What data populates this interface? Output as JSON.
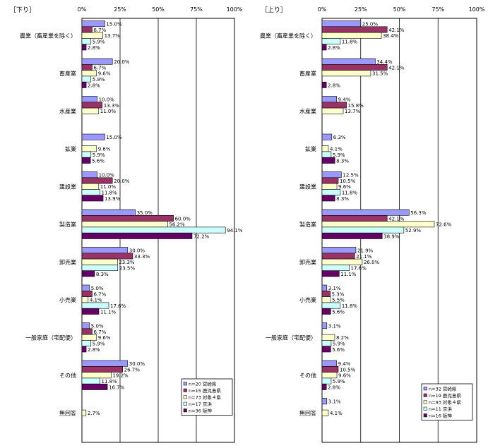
{
  "chart_data": [
    {
      "type": "bar",
      "orientation": "horizontal",
      "title": "［下り］",
      "xlim": [
        0,
        100
      ],
      "x_ticks": [
        "0%",
        "25%",
        "50%",
        "75%",
        "100%"
      ],
      "categories": [
        "農業（畜産業を除く）",
        "畜産業",
        "水産業",
        "鉱業",
        "建設業",
        "製造業",
        "卸売業",
        "小売業",
        "一般家庭（宅配便）",
        "その他",
        "無回答"
      ],
      "series": [
        {
          "name": "n=20 宮崎県",
          "color": "#9999ff",
          "values": [
            15.0,
            20.0,
            10.0,
            15.0,
            10.0,
            35.0,
            30.0,
            5.0,
            5.0,
            30.0,
            null
          ]
        },
        {
          "name": "n=15 鹿児島県",
          "color": "#993366",
          "values": [
            6.7,
            6.7,
            13.3,
            null,
            20.0,
            60.0,
            33.3,
            6.7,
            6.7,
            26.7,
            null
          ]
        },
        {
          "name": "n=73 対象４県",
          "color": "#ffffcc",
          "values": [
            13.7,
            9.6,
            11.0,
            9.6,
            11.0,
            56.2,
            23.3,
            4.1,
            9.6,
            19.2,
            2.7
          ]
        },
        {
          "name": "n=17 京浜",
          "color": "#ccffff",
          "values": [
            5.9,
            5.9,
            null,
            5.9,
            11.8,
            94.1,
            23.5,
            17.6,
            5.9,
            11.8,
            null
          ]
        },
        {
          "name": "n=36 阪神",
          "color": "#660066",
          "values": [
            2.8,
            2.8,
            null,
            5.6,
            13.9,
            72.2,
            8.3,
            11.1,
            2.8,
            16.7,
            null
          ]
        }
      ],
      "value_labels": [
        [
          "15.0%",
          "20.0%",
          "10.0%",
          "15.0%",
          "10.0%",
          "35.0%",
          "30.0%",
          "5.0%",
          "5.0%",
          "30.0%",
          ""
        ],
        [
          "6.7%",
          "6.7%",
          "13.3%",
          "",
          "20.0%",
          "60.0%",
          "33.3%",
          "6.7%",
          "6.7%",
          "26.7%",
          ""
        ],
        [
          "13.7%",
          "9.6%",
          "11.0%",
          "9.6%",
          "11.0%",
          "56.2%",
          "23.3%",
          "4.1%",
          "9.6%",
          "19.2%",
          "2.7%"
        ],
        [
          "5.9%",
          "5.9%",
          "",
          "5.9%",
          "11.8%",
          "94.1%",
          "23.5%",
          "17.6%",
          "5.9%",
          "11.8%",
          ""
        ],
        [
          "2.8%",
          "2.8%",
          "",
          "5.6%",
          "13.9%",
          "72.2%",
          "8.3%",
          "11.1%",
          "2.8%",
          "16.7%",
          ""
        ]
      ],
      "legend_position": "bottom-right"
    },
    {
      "type": "bar",
      "orientation": "horizontal",
      "title": "［上り］",
      "xlim": [
        0,
        100
      ],
      "x_ticks": [
        "0%",
        "25%",
        "50%",
        "75%",
        "100%"
      ],
      "categories": [
        "農業（畜産業を除く）",
        "畜産業",
        "水産業",
        "鉱業",
        "建設業",
        "製造業",
        "卸売業",
        "小売業",
        "一般家庭（宅配便）",
        "その他",
        "無回答"
      ],
      "series": [
        {
          "name": "n=32 宮崎県",
          "color": "#9999ff",
          "values": [
            25.0,
            34.4,
            9.4,
            6.3,
            12.5,
            56.3,
            21.9,
            3.1,
            3.1,
            9.4,
            3.1
          ]
        },
        {
          "name": "n=19 鹿児島県",
          "color": "#993366",
          "values": [
            42.1,
            42.1,
            15.8,
            null,
            10.5,
            42.1,
            21.1,
            5.3,
            null,
            10.5,
            null
          ]
        },
        {
          "name": "n=93 対象４県",
          "color": "#ffffcc",
          "values": [
            38.4,
            31.5,
            13.7,
            4.1,
            9.6,
            72.6,
            26.0,
            5.5,
            8.2,
            9.6,
            4.1
          ]
        },
        {
          "name": "n=11 京浜",
          "color": "#ccffff",
          "values": [
            11.8,
            null,
            null,
            5.9,
            11.8,
            52.9,
            17.6,
            11.8,
            5.9,
            5.9,
            null
          ]
        },
        {
          "name": "n=16 阪神",
          "color": "#660066",
          "values": [
            2.8,
            2.8,
            null,
            8.3,
            8.3,
            38.9,
            11.1,
            5.6,
            5.6,
            2.8,
            null
          ]
        }
      ],
      "value_labels": [
        [
          "25.0%",
          "34.4%",
          "9.4%",
          "6.3%",
          "12.5%",
          "56.3%",
          "21.9%",
          "3.1%",
          "3.1%",
          "9.4%",
          "3.1%"
        ],
        [
          "42.1%",
          "42.1%",
          "15.8%",
          "",
          "10.5%",
          "42.1%",
          "21.1%",
          "5.3%",
          "",
          "10.5%",
          ""
        ],
        [
          "38.4%",
          "31.5%",
          "13.7%",
          "4.1%",
          "9.6%",
          "72.6%",
          "26.0%",
          "5.5%",
          "8.2%",
          "9.6%",
          "4.1%"
        ],
        [
          "11.8%",
          "",
          "",
          "5.9%",
          "11.8%",
          "52.9%",
          "17.6%",
          "11.8%",
          "5.9%",
          "5.9%",
          ""
        ],
        [
          "2.8%",
          "2.8%",
          "",
          "8.3%",
          "8.3%",
          "38.9%",
          "11.1%",
          "5.6%",
          "5.6%",
          "2.8%",
          ""
        ]
      ],
      "legend_position": "bottom-right"
    }
  ]
}
